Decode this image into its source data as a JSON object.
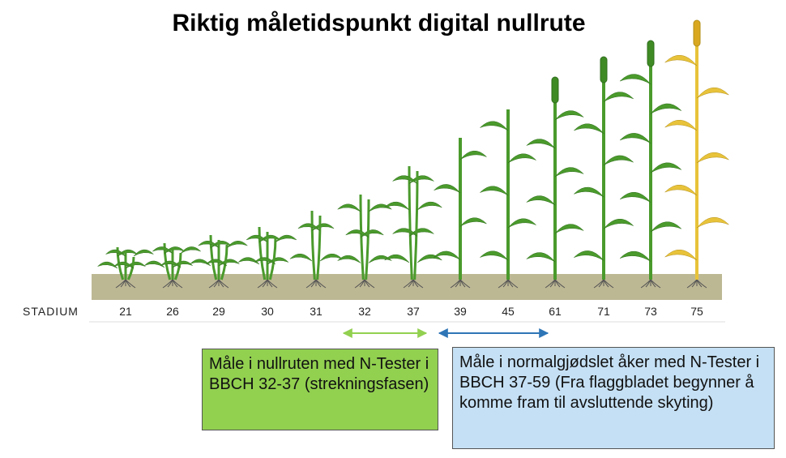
{
  "title": "Riktig måletidspunkt digital nullrute",
  "stage_label": "STADIUM",
  "stages": [
    "21",
    "26",
    "29",
    "30",
    "31",
    "32",
    "37",
    "39",
    "45",
    "61",
    "71",
    "73",
    "75"
  ],
  "boxes": [
    {
      "text": "Måle i nullruten med N-Tester i BBCH 32-37 (strekningsfasen)"
    },
    {
      "text": "Måle i normalgjødslet åker med N-Tester i BBCH 37-59 (Fra flaggbladet begynner å komme fram til avsluttende skyting)"
    }
  ]
}
